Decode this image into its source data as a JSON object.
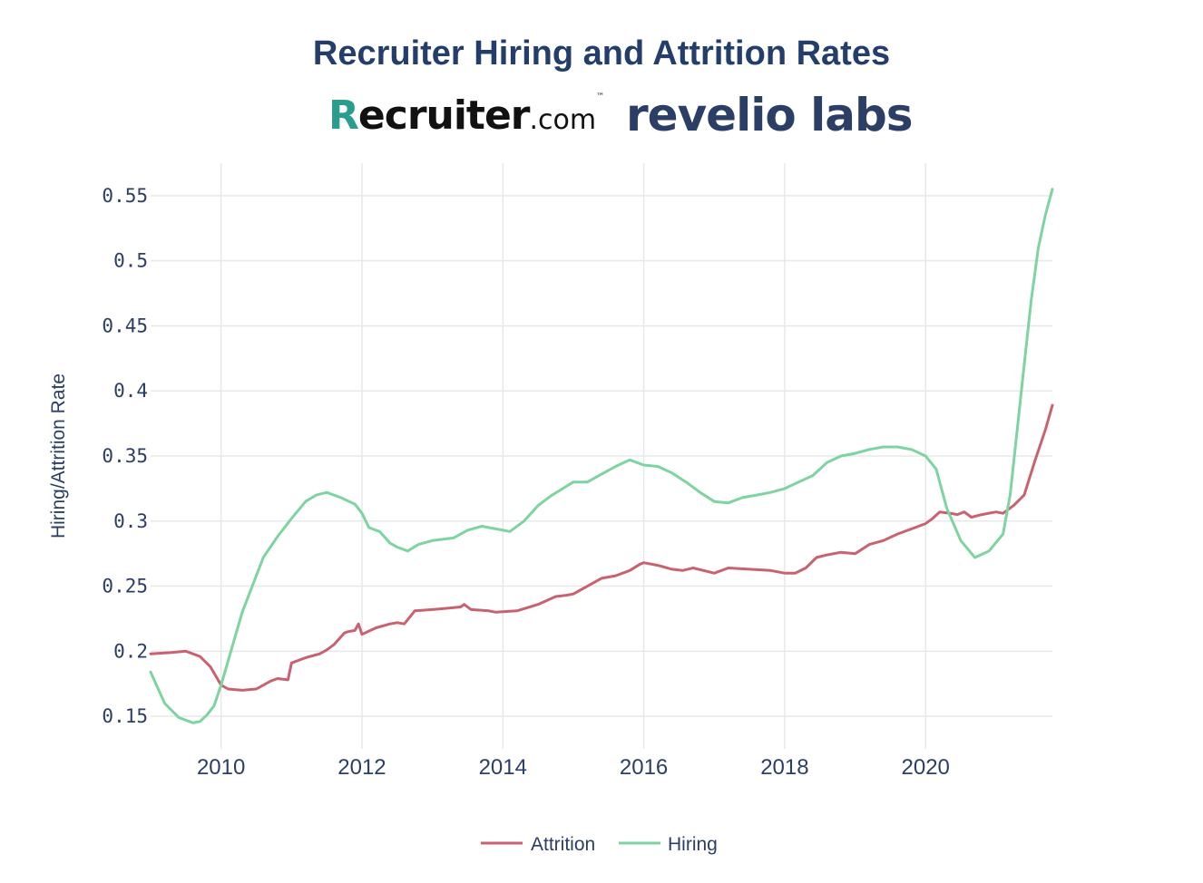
{
  "title": "Recruiter Hiring and Attrition Rates",
  "logos": {
    "recruiter": {
      "initial": "R",
      "rest": "ecruiter",
      "suffix": ".com",
      "tm": "™"
    },
    "revelio": "revelio labs"
  },
  "chart_data": {
    "type": "line",
    "title": "Recruiter Hiring and Attrition Rates",
    "xlabel": "",
    "ylabel": "Hiring/Attrition Rate",
    "xlim": [
      2009.0,
      2021.8
    ],
    "ylim": [
      0.125,
      0.575
    ],
    "xticks": [
      2010,
      2012,
      2014,
      2016,
      2018,
      2020
    ],
    "yticks": [
      0.15,
      0.2,
      0.25,
      0.3,
      0.35,
      0.4,
      0.45,
      0.5,
      0.55
    ],
    "ytick_labels": [
      "0.15",
      "0.2",
      "0.25",
      "0.3",
      "0.35",
      "0.4",
      "0.45",
      "0.5",
      "0.55"
    ],
    "grid": true,
    "legend_position": "bottom-center",
    "series": [
      {
        "name": "Attrition",
        "color": "#c9626f",
        "x": [
          2009.0,
          2009.3,
          2009.5,
          2009.7,
          2009.85,
          2010.0,
          2010.1,
          2010.3,
          2010.5,
          2010.7,
          2010.8,
          2010.95,
          2011.0,
          2011.2,
          2011.4,
          2011.5,
          2011.6,
          2011.75,
          2011.8,
          2011.9,
          2011.95,
          2012.0,
          2012.2,
          2012.4,
          2012.5,
          2012.6,
          2012.75,
          2013.0,
          2013.2,
          2013.4,
          2013.45,
          2013.55,
          2013.8,
          2013.9,
          2014.2,
          2014.5,
          2014.75,
          2014.9,
          2015.0,
          2015.2,
          2015.4,
          2015.6,
          2015.8,
          2015.95,
          2016.0,
          2016.2,
          2016.4,
          2016.55,
          2016.7,
          2017.0,
          2017.2,
          2017.5,
          2017.8,
          2018.0,
          2018.15,
          2018.3,
          2018.45,
          2018.6,
          2018.8,
          2019.0,
          2019.2,
          2019.4,
          2019.6,
          2019.8,
          2020.0,
          2020.1,
          2020.2,
          2020.35,
          2020.45,
          2020.55,
          2020.65,
          2020.8,
          2021.0,
          2021.1,
          2021.25,
          2021.4,
          2021.55,
          2021.7,
          2021.8
        ],
        "values": [
          0.198,
          0.199,
          0.2,
          0.196,
          0.188,
          0.174,
          0.171,
          0.17,
          0.171,
          0.177,
          0.179,
          0.178,
          0.191,
          0.195,
          0.198,
          0.201,
          0.205,
          0.214,
          0.215,
          0.216,
          0.221,
          0.213,
          0.218,
          0.221,
          0.222,
          0.221,
          0.231,
          0.232,
          0.233,
          0.234,
          0.236,
          0.232,
          0.231,
          0.23,
          0.231,
          0.236,
          0.242,
          0.243,
          0.244,
          0.25,
          0.256,
          0.258,
          0.262,
          0.267,
          0.268,
          0.266,
          0.263,
          0.262,
          0.264,
          0.26,
          0.264,
          0.263,
          0.262,
          0.26,
          0.26,
          0.264,
          0.272,
          0.274,
          0.276,
          0.275,
          0.282,
          0.285,
          0.29,
          0.294,
          0.298,
          0.302,
          0.307,
          0.306,
          0.305,
          0.307,
          0.303,
          0.305,
          0.307,
          0.306,
          0.312,
          0.32,
          0.346,
          0.37,
          0.389
        ]
      },
      {
        "name": "Hiring",
        "color": "#7dd4a0",
        "x": [
          2009.0,
          2009.2,
          2009.4,
          2009.6,
          2009.7,
          2009.8,
          2009.9,
          2010.0,
          2010.3,
          2010.6,
          2010.8,
          2011.0,
          2011.2,
          2011.35,
          2011.5,
          2011.7,
          2011.9,
          2012.0,
          2012.1,
          2012.25,
          2012.4,
          2012.5,
          2012.65,
          2012.8,
          2013.0,
          2013.3,
          2013.5,
          2013.7,
          2013.9,
          2014.1,
          2014.3,
          2014.5,
          2014.7,
          2015.0,
          2015.2,
          2015.4,
          2015.6,
          2015.8,
          2016.0,
          2016.2,
          2016.4,
          2016.6,
          2016.8,
          2017.0,
          2017.2,
          2017.4,
          2017.6,
          2017.8,
          2018.0,
          2018.2,
          2018.4,
          2018.6,
          2018.8,
          2019.0,
          2019.2,
          2019.4,
          2019.6,
          2019.8,
          2020.0,
          2020.15,
          2020.3,
          2020.5,
          2020.7,
          2020.9,
          2021.1,
          2021.2,
          2021.3,
          2021.4,
          2021.5,
          2021.6,
          2021.7,
          2021.8
        ],
        "values": [
          0.184,
          0.16,
          0.149,
          0.145,
          0.146,
          0.151,
          0.158,
          0.174,
          0.23,
          0.272,
          0.288,
          0.302,
          0.315,
          0.32,
          0.322,
          0.318,
          0.313,
          0.306,
          0.295,
          0.292,
          0.283,
          0.28,
          0.277,
          0.282,
          0.285,
          0.287,
          0.293,
          0.296,
          0.294,
          0.292,
          0.3,
          0.312,
          0.32,
          0.33,
          0.33,
          0.336,
          0.342,
          0.347,
          0.343,
          0.342,
          0.337,
          0.33,
          0.322,
          0.315,
          0.314,
          0.318,
          0.32,
          0.322,
          0.325,
          0.33,
          0.335,
          0.345,
          0.35,
          0.352,
          0.355,
          0.357,
          0.357,
          0.355,
          0.35,
          0.34,
          0.31,
          0.285,
          0.272,
          0.277,
          0.29,
          0.32,
          0.37,
          0.42,
          0.47,
          0.51,
          0.535,
          0.555
        ]
      }
    ]
  }
}
